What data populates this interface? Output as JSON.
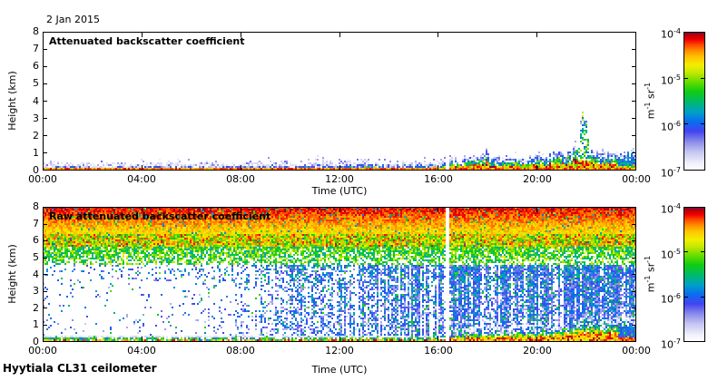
{
  "figure": {
    "date_label": "2 Jan 2015",
    "footer_label": "Hyytiala CL31 ceilometer"
  },
  "axes": {
    "x_label": "Time (UTC)",
    "y_label": "Height (km)",
    "x_tick_labels": [
      "00:00",
      "04:00",
      "08:00",
      "12:00",
      "16:00",
      "20:00",
      "00:00"
    ],
    "y_tick_labels": [
      "0",
      "1",
      "2",
      "3",
      "4",
      "5",
      "6",
      "7",
      "8"
    ]
  },
  "colorbar": {
    "tick_labels": [
      "10^-4",
      "10^-5",
      "10^-6",
      "10^-7"
    ],
    "unit": "m^-1 sr^-1",
    "scale": "log",
    "colormap": [
      [
        0.0,
        "#ffffff"
      ],
      [
        0.05,
        "#f0f0fc"
      ],
      [
        0.13,
        "#c6c6f2"
      ],
      [
        0.2,
        "#9090ea"
      ],
      [
        0.28,
        "#4444f0"
      ],
      [
        0.35,
        "#0a6cf0"
      ],
      [
        0.42,
        "#00a0c8"
      ],
      [
        0.5,
        "#00bb66"
      ],
      [
        0.57,
        "#11cc11"
      ],
      [
        0.64,
        "#66dd00"
      ],
      [
        0.71,
        "#c8e800"
      ],
      [
        0.76,
        "#f2ee00"
      ],
      [
        0.82,
        "#ffc400"
      ],
      [
        0.87,
        "#ff8800"
      ],
      [
        0.91,
        "#ff4400"
      ],
      [
        0.945,
        "#f20000"
      ],
      [
        0.975,
        "#c00000"
      ],
      [
        1.0,
        "#6e0a50"
      ]
    ]
  },
  "panels": [
    {
      "title": "Attenuated backscatter coefficient"
    },
    {
      "title": "Raw attenuated backscatter coefficient"
    }
  ],
  "chart_data": [
    {
      "type": "heatmap",
      "title": "Attenuated backscatter coefficient",
      "xlabel": "Time (UTC)",
      "ylabel": "Height (km)",
      "x_range_hours": [
        0,
        24
      ],
      "ylim_km": [
        0,
        8
      ],
      "color_scale": {
        "min": "10^-7",
        "max": "10^-4",
        "unit": "m^-1 sr^-1",
        "scale": "log"
      },
      "grid": false,
      "legend": "colorbar-right",
      "data_gap_hours": [
        16.28,
        16.45
      ],
      "surface_layer_km": 0.12,
      "boundary_layer_top_km": [
        [
          0,
          0.3
        ],
        [
          2,
          0.28
        ],
        [
          4,
          0.3
        ],
        [
          6,
          0.28
        ],
        [
          8,
          0.32
        ],
        [
          9.5,
          0.38
        ],
        [
          10.5,
          0.42
        ],
        [
          12,
          0.4
        ],
        [
          12.8,
          0.52
        ],
        [
          13.5,
          0.48
        ],
        [
          14.5,
          0.38
        ],
        [
          15.5,
          0.45
        ],
        [
          16.2,
          0.5
        ],
        [
          16.5,
          0.55
        ],
        [
          17,
          0.6
        ],
        [
          17.7,
          0.65
        ],
        [
          17.9,
          1.05
        ],
        [
          18.1,
          0.65
        ],
        [
          18.8,
          0.6
        ],
        [
          19.5,
          0.65
        ],
        [
          20.3,
          0.7
        ],
        [
          20.7,
          0.95
        ],
        [
          21.0,
          0.8
        ],
        [
          21.4,
          1.0
        ],
        [
          21.65,
          1.6
        ],
        [
          21.85,
          2.85
        ],
        [
          22.0,
          2.2
        ],
        [
          22.15,
          1.2
        ],
        [
          22.5,
          1.05
        ],
        [
          23.0,
          0.85
        ],
        [
          23.4,
          0.8
        ],
        [
          23.7,
          0.95
        ],
        [
          24,
          0.9
        ]
      ],
      "plume_hours": [
        21.55,
        22.2
      ],
      "notes": "Aerosol layer confined below ~0.5 km until 16:00 (strong red surface return, blue/lavender top); layer deepens with strong backscatter after 16:00; narrow plume reaching ~2.9 km near 21:50; dense green-blue blob near 23:30-24:00; white data gap column at ~16:20."
    },
    {
      "type": "heatmap",
      "title": "Raw attenuated backscatter coefficient",
      "xlabel": "Time (UTC)",
      "ylabel": "Height (km)",
      "x_range_hours": [
        0,
        24
      ],
      "ylim_km": [
        0,
        8
      ],
      "color_scale": {
        "min": "10^-7",
        "max": "10^-4",
        "unit": "m^-1 sr^-1",
        "scale": "log"
      },
      "grid": false,
      "legend": "colorbar-right",
      "data_gap_hours": [
        16.28,
        16.45
      ],
      "noise_band_red_km": [
        6.4,
        8
      ],
      "noise_band_orange_km": [
        5.6,
        6.4
      ],
      "noise_band_green_km": [
        4.6,
        5.6
      ],
      "gray_band_km": [
        0.12,
        0.42
      ],
      "low_level_noise_presence": [
        [
          0,
          0.05
        ],
        [
          3,
          0.04
        ],
        [
          5,
          0.05
        ],
        [
          6.5,
          0.08
        ],
        [
          7.5,
          0.14
        ],
        [
          8.5,
          0.22
        ],
        [
          9.5,
          0.32
        ],
        [
          10.5,
          0.36
        ],
        [
          11.5,
          0.42
        ],
        [
          12.5,
          0.4
        ],
        [
          13.5,
          0.45
        ],
        [
          14.5,
          0.5
        ],
        [
          15.5,
          0.52
        ],
        [
          16.25,
          0.55
        ],
        [
          16.5,
          0.8
        ],
        [
          17.5,
          0.75
        ],
        [
          18.5,
          0.78
        ],
        [
          19.5,
          0.8
        ],
        [
          20.5,
          0.78
        ],
        [
          21.5,
          0.8
        ],
        [
          22.5,
          0.75
        ],
        [
          23.5,
          0.78
        ],
        [
          24,
          0.8
        ]
      ],
      "surface_blob_top_km": [
        [
          0,
          0.25
        ],
        [
          4,
          0.25
        ],
        [
          8,
          0.25
        ],
        [
          12,
          0.28
        ],
        [
          16,
          0.3
        ],
        [
          16.6,
          0.4
        ],
        [
          17.5,
          0.45
        ],
        [
          18.5,
          0.5
        ],
        [
          19.5,
          0.55
        ],
        [
          20.5,
          0.6
        ],
        [
          21.2,
          0.7
        ],
        [
          21.8,
          0.9
        ],
        [
          22.3,
          1.05
        ],
        [
          22.7,
          0.85
        ],
        [
          23.1,
          0.95
        ],
        [
          23.5,
          1.0
        ],
        [
          24,
          1.1
        ]
      ],
      "notes": "Instrument noise: solid red/orange speckle 6.4-8 km, yellow-green 4.6-6.4 km; mostly clear (white) below 4.5 km before 07:00; blue-green vertical streaks increasing 08:00-16:00; dense blue speckle to the ground after 16:30; pale gray band 0.1-0.4 km before 16:20; red surface blob deepening to ~1 km after 21:00 with dark blue blob near 23:30-24:00; white data gap column at ~16:20."
    }
  ]
}
